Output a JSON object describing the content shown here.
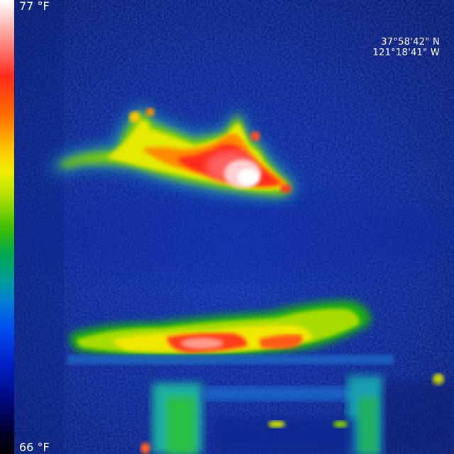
{
  "scale": {
    "max_label": "77 °F",
    "min_label": "66 °F",
    "palette": [
      "#ffffff",
      "#ff2a1a",
      "#ff6a00",
      "#ffc800",
      "#eef000",
      "#40c000",
      "#00a090",
      "#0050f0",
      "#000a80",
      "#000000"
    ]
  },
  "gps": {
    "latitude": "37°58'42\" N",
    "longitude": "121°18'41\" W"
  },
  "colors": {
    "background_cold": "#0a1a8a",
    "hot_core": "#ffffff",
    "warm": "#ff2a1a",
    "mid": "#e8f000",
    "cool": "#1ec000"
  }
}
